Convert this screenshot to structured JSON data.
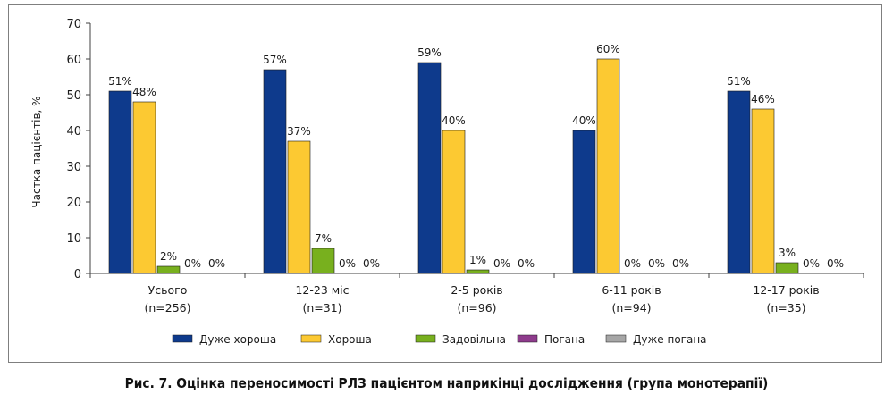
{
  "caption": "Рис. 7. Оцінка переносимості РЛЗ пацієнтом наприкінці дослідження (група монотерапії)",
  "chart_data": {
    "type": "bar",
    "title": "",
    "xlabel": "",
    "ylabel": "Частка пацієнтів, %",
    "ylim": [
      0,
      70
    ],
    "yticks": [
      0,
      10,
      20,
      30,
      40,
      50,
      60,
      70
    ],
    "grid": false,
    "legend_position": "bottom",
    "categories": [
      [
        "Усього",
        "(n=256)"
      ],
      [
        "12-23 міс",
        "(n=31)"
      ],
      [
        "2-5 років",
        "(n=96)"
      ],
      [
        "6-11 років",
        "(n=94)"
      ],
      [
        "12-17 років",
        "(n=35)"
      ]
    ],
    "series": [
      {
        "name": "Дуже хороша",
        "color": "#0e3a8c",
        "values": [
          51,
          57,
          59,
          40,
          51
        ]
      },
      {
        "name": "Хороша",
        "color": "#fcc932",
        "values": [
          48,
          37,
          40,
          60,
          46
        ]
      },
      {
        "name": "Задовільна",
        "color": "#78b01e",
        "values": [
          2,
          7,
          1,
          0,
          3
        ]
      },
      {
        "name": "Погана",
        "color": "#8e3b8c",
        "values": [
          0,
          0,
          0,
          0,
          0
        ]
      },
      {
        "name": "Дуже погана",
        "color": "#a6a6a6",
        "values": [
          0,
          0,
          0,
          0,
          0
        ]
      }
    ],
    "data_labels": [
      [
        "51%",
        "48%",
        "2%",
        "0%",
        "0%"
      ],
      [
        "57%",
        "37%",
        "7%",
        "0%",
        "0%"
      ],
      [
        "59%",
        "40%",
        "1%",
        "0%",
        "0%"
      ],
      [
        "40%",
        "60%",
        "0%",
        "0%",
        "0%"
      ],
      [
        "51%",
        "46%",
        "3%",
        "0%",
        "0%"
      ]
    ]
  }
}
